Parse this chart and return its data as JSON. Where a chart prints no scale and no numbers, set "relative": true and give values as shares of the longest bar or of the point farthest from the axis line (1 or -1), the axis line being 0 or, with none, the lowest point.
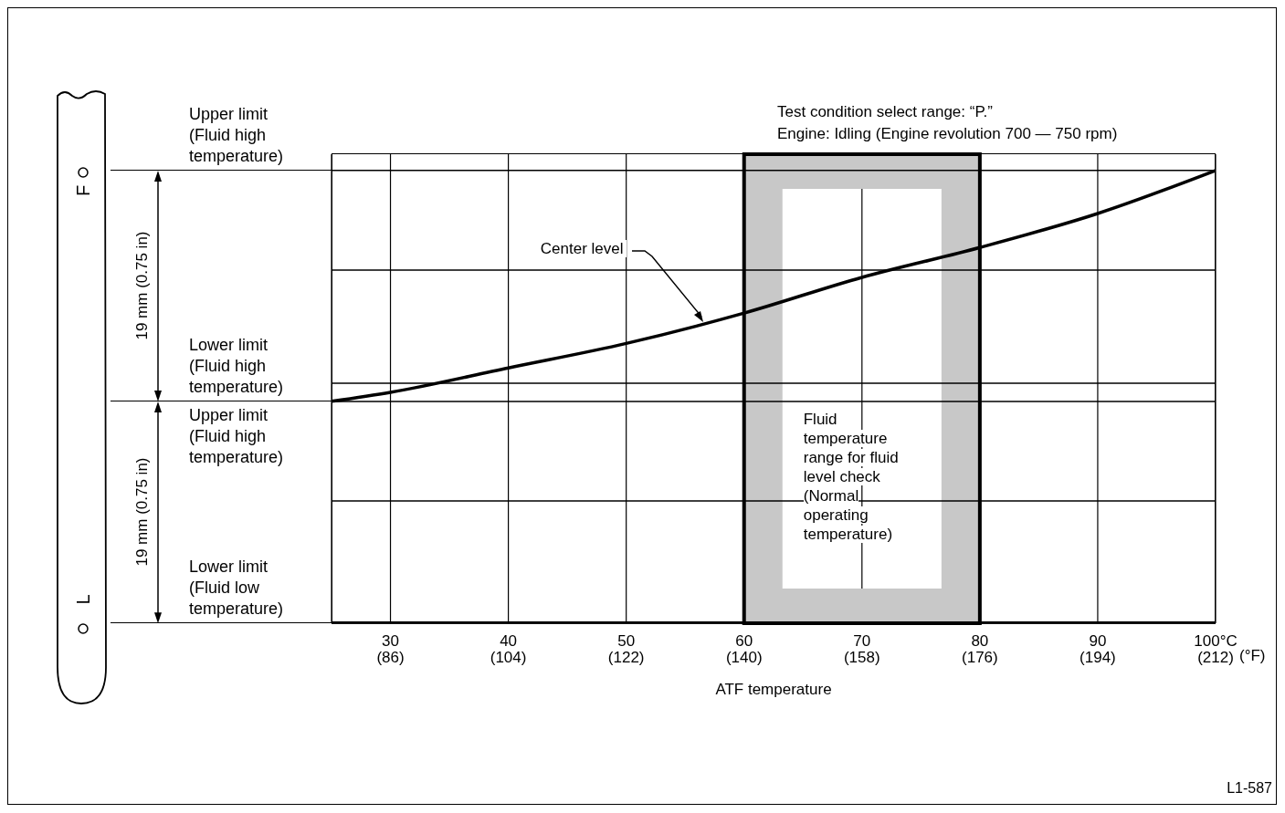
{
  "chart_data": {
    "type": "line",
    "title": "Test condition select range: “P.”",
    "subtitle": "Engine: Idling (Engine revolution 700 — 750 rpm)",
    "xlabel": "ATF temperature",
    "x2label": "(°F)",
    "relative": true,
    "color": "#000000",
    "line_style": "solid",
    "grid": "x",
    "x": [
      25,
      30,
      40,
      50,
      60,
      70,
      80,
      90,
      100
    ],
    "values": [
      0.49,
      0.51,
      0.564,
      0.618,
      0.685,
      0.764,
      0.83,
      0.905,
      1.0
    ],
    "xlim": [
      25,
      100
    ],
    "xticks": [
      30,
      40,
      50,
      60,
      70,
      80,
      90,
      {
        "value": 100,
        "label": "100°C"
      }
    ],
    "x2lim": [
      77,
      212
    ],
    "x2ticks": [
      {
        "value": 86,
        "label": "(86)"
      },
      {
        "value": 104,
        "label": "(104)"
      },
      {
        "value": 122,
        "label": "(122)"
      },
      {
        "value": 140,
        "label": "(140)"
      },
      {
        "value": 158,
        "label": "(158)"
      },
      {
        "value": 176,
        "label": "(176)"
      },
      {
        "value": 194,
        "label": "(194)"
      },
      {
        "value": 212,
        "label": "(212)"
      }
    ],
    "bands": [
      {
        "axis": "x",
        "from": 60,
        "to": 80,
        "label": "Fluid temperature range for fluid level check (Normal operating temperature)",
        "color": "#c8c8c8"
      }
    ],
    "ref_lines": [
      {
        "axis": "y",
        "value": 1,
        "label": "Upper limit (Fluid high temperature)"
      },
      {
        "axis": "y",
        "value": 0.49,
        "label": "Lower limit (Fluid high temperature)"
      },
      {
        "axis": "y",
        "value": 0,
        "label": "Lower limit (Fluid low temperature)"
      },
      {
        "axis": "y",
        "value": 0.78
      },
      {
        "axis": "y",
        "value": 0.53
      },
      {
        "axis": "y",
        "value": 0.27
      }
    ],
    "annotations": [
      {
        "text": "Center level",
        "x": 56.5,
        "y": 0.665
      },
      "Upper limit (Fluid high temperature)",
      "19 mm (0.75 in)",
      "19 mm (0.75 in)",
      "F",
      "L",
      "L1-587"
    ]
  }
}
